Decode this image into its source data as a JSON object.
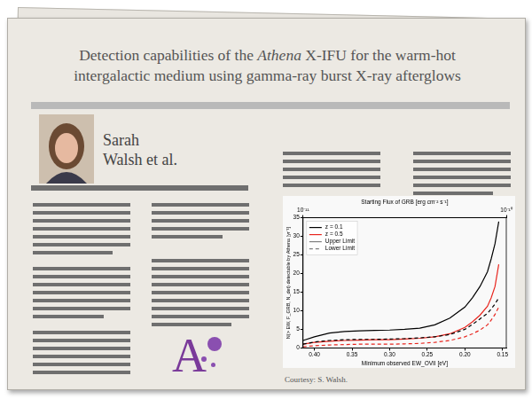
{
  "title": [
    [
      {
        "text": "Detection capabilities of the "
      },
      {
        "text": "Athena",
        "italic": true
      },
      {
        "text": " X-IFU for the warm-hot"
      }
    ],
    [
      {
        "text": "intergalactic medium using gamma-ray burst X-ray afterglows"
      }
    ]
  ],
  "author": [
    "Sarah",
    "Walsh et al."
  ],
  "logo": "A",
  "caption": "Courtesy: S. Walsh.",
  "chart_data": {
    "type": "line",
    "x_label": "Minimum observed EW_OVII [eV]",
    "y_label": "N(> EW, F_GRB, N_det) detectable by Athena [yr⁻¹]",
    "x": [
      0.415,
      0.4,
      0.38,
      0.36,
      0.34,
      0.32,
      0.3,
      0.28,
      0.26,
      0.24,
      0.22,
      0.2,
      0.19,
      0.18,
      0.17,
      0.165,
      0.16,
      0.155
    ],
    "series": [
      {
        "name": "z = 0.1",
        "color": "#000000",
        "line_style": "solid",
        "values": [
          2.0,
          3.0,
          4.0,
          4.4,
          4.6,
          4.7,
          4.8,
          5.0,
          5.3,
          6.2,
          8.0,
          11.0,
          13.5,
          16.5,
          20.5,
          24.0,
          28.0,
          34.0
        ]
      },
      {
        "name": "z = 0.1",
        "color": "#000000",
        "line_style": "dashed",
        "values": [
          1.0,
          1.6,
          2.0,
          2.2,
          2.3,
          2.3,
          2.4,
          2.5,
          2.7,
          3.0,
          3.6,
          5.0,
          6.3,
          7.8,
          9.3,
          10.5,
          11.8,
          13.5
        ]
      },
      {
        "name": "z = 0.5",
        "color": "#e8261f",
        "line_style": "solid",
        "values": [
          1.0,
          1.5,
          1.8,
          2.0,
          2.1,
          2.2,
          2.2,
          2.4,
          2.6,
          3.0,
          3.8,
          5.5,
          7.0,
          8.8,
          11.2,
          13.5,
          16.5,
          22.5
        ]
      },
      {
        "name": "z = 0.5",
        "color": "#e8261f",
        "line_style": "dashed",
        "values": [
          0.3,
          0.6,
          0.8,
          0.9,
          1.0,
          1.0,
          1.0,
          1.1,
          1.2,
          1.5,
          2.0,
          3.0,
          3.8,
          4.8,
          6.2,
          7.5,
          9.0,
          11.0
        ]
      }
    ],
    "xlim": [
      0.415,
      0.145
    ],
    "xticks": [
      {
        "value": 0.4,
        "label": "0.40"
      },
      0.35,
      {
        "value": 0.3,
        "label": "0.30"
      },
      0.25,
      {
        "value": 0.2,
        "label": "0.20"
      },
      0.15
    ],
    "ylim": [
      0,
      35
    ],
    "yticks": [
      0,
      5,
      10,
      15,
      20,
      25,
      30,
      35
    ],
    "x2": {
      "label": "Starting Flux of GRB [erg cm⁻² s⁻¹]",
      "log": true,
      "lim": [
        1e-11,
        1e-10
      ],
      "ticks": [
        {
          "value": 1e-11,
          "label": "10⁻¹¹"
        },
        {
          "value": 1e-10,
          "label": "10⁻¹⁰"
        }
      ]
    },
    "grid": false,
    "legend": "upper left",
    "legend_entries": [
      {
        "label": "z = 0.1",
        "color": "#000000",
        "line_style": "solid"
      },
      {
        "label": "z = 0.5",
        "color": "#e8261f",
        "line_style": "solid"
      },
      {
        "label": "Upper Limit",
        "color": "#808080",
        "line_style": "solid"
      },
      {
        "label": "Lower Limit",
        "color": "#808080",
        "line_style": "dashed"
      }
    ]
  }
}
